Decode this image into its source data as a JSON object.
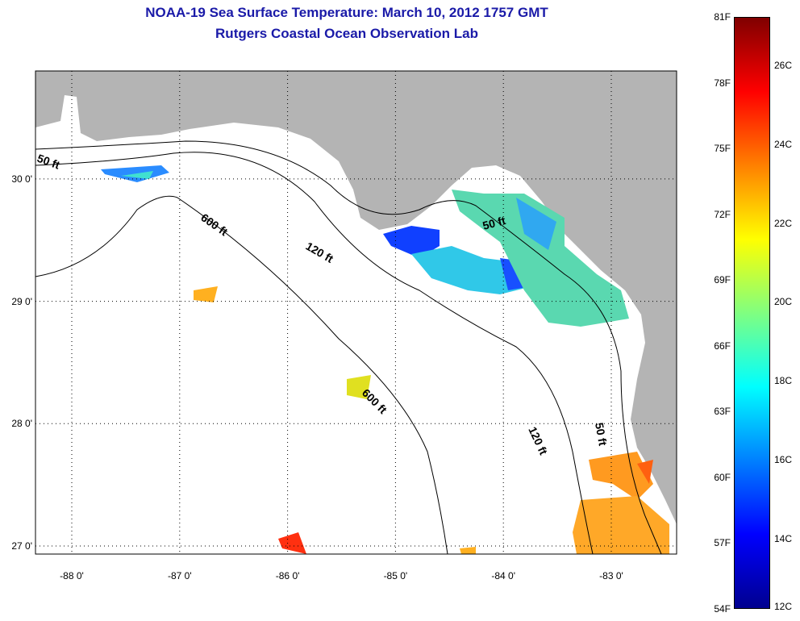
{
  "header": {
    "title": "NOAA-19 Sea Surface Temperature:  March 10, 2012 1757 GMT",
    "subtitle": "Rutgers Coastal Ocean Observation Lab"
  },
  "map": {
    "lon_ticks": [
      {
        "value": -88,
        "label": "-88 0'"
      },
      {
        "value": -87,
        "label": "-87 0'"
      },
      {
        "value": -86,
        "label": "-86 0'"
      },
      {
        "value": -85,
        "label": "-85 0'"
      },
      {
        "value": -84,
        "label": "-84 0'"
      },
      {
        "value": -83,
        "label": "-83 0'"
      }
    ],
    "lat_ticks": [
      {
        "value": 30,
        "label": "30 0'"
      },
      {
        "value": 29,
        "label": "29 0'"
      },
      {
        "value": 28,
        "label": "28 0'"
      },
      {
        "value": 27,
        "label": "27 0'"
      }
    ],
    "contour_labels": [
      "50 ft",
      "600 ft",
      "120 ft",
      "50 ft",
      "600 ft",
      "120 ft",
      "50 ft"
    ],
    "land_color": "#b4b4b4"
  },
  "colorbar": {
    "range_f": [
      54,
      81
    ],
    "f_labels": [
      {
        "value": 81,
        "label": "81F"
      },
      {
        "value": 78,
        "label": "78F"
      },
      {
        "value": 75,
        "label": "75F"
      },
      {
        "value": 72,
        "label": "72F"
      },
      {
        "value": 69,
        "label": "69F"
      },
      {
        "value": 66,
        "label": "66F"
      },
      {
        "value": 63,
        "label": "63F"
      },
      {
        "value": 60,
        "label": "60F"
      },
      {
        "value": 57,
        "label": "57F"
      },
      {
        "value": 54,
        "label": "54F"
      }
    ],
    "c_labels": [
      {
        "value": 26,
        "label": "26C"
      },
      {
        "value": 24,
        "label": "24C"
      },
      {
        "value": 22,
        "label": "22C"
      },
      {
        "value": 20,
        "label": "20C"
      },
      {
        "value": 18,
        "label": "18C"
      },
      {
        "value": 16,
        "label": "16C"
      },
      {
        "value": 14,
        "label": "14C"
      },
      {
        "value": 12,
        "label": "12C"
      }
    ]
  }
}
